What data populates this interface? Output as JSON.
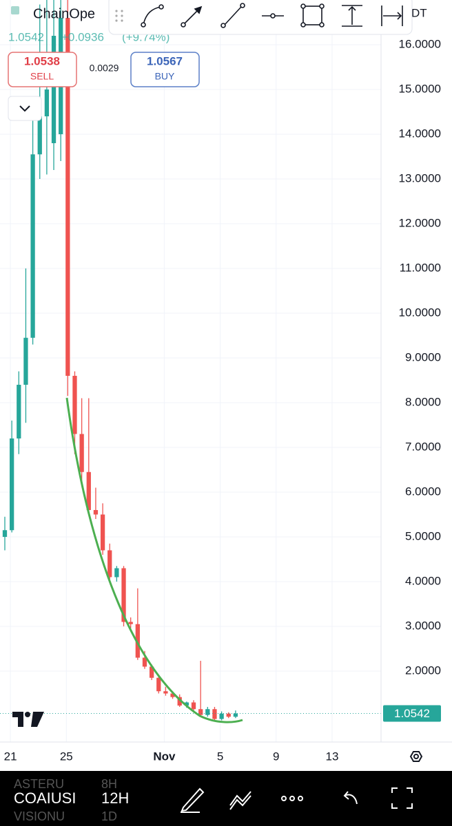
{
  "chart_data": {
    "type": "candlestick",
    "open": [
      5.0,
      5.15,
      7.2,
      8.4,
      9.45,
      13.55,
      14.4,
      13.8,
      14.0,
      16.6,
      8.6,
      7.3,
      6.45,
      5.6,
      5.5,
      4.7,
      4.1,
      4.3,
      3.1,
      3.05,
      2.3,
      2.1,
      1.85,
      1.55,
      1.5,
      1.42,
      1.23,
      1.3,
      1.15,
      1.02,
      1.15,
      0.93,
      1.05,
      0.98
    ],
    "high": [
      5.45,
      7.6,
      8.7,
      11.0,
      14.4,
      16.9,
      17.0,
      17.0,
      17.2,
      17.2,
      8.7,
      8.1,
      8.1,
      6.1,
      5.75,
      4.85,
      4.35,
      4.35,
      3.2,
      3.85,
      2.45,
      2.15,
      1.9,
      1.65,
      1.55,
      1.48,
      1.32,
      1.35,
      2.23,
      1.2,
      1.2,
      1.1,
      1.08,
      1.12
    ],
    "low": [
      4.7,
      5.1,
      6.85,
      7.55,
      9.3,
      13.0,
      13.1,
      13.2,
      13.4,
      8.15,
      6.85,
      6.2,
      5.5,
      5.4,
      4.6,
      4.05,
      4.0,
      3.0,
      2.95,
      2.25,
      2.05,
      1.8,
      1.5,
      1.45,
      1.38,
      1.2,
      1.18,
      1.12,
      1.0,
      0.98,
      0.9,
      0.9,
      0.95,
      0.95
    ],
    "close": [
      5.15,
      7.2,
      8.4,
      9.45,
      13.55,
      14.4,
      15.0,
      16.2,
      16.6,
      8.6,
      7.3,
      6.45,
      5.6,
      5.5,
      4.7,
      4.1,
      4.3,
      3.1,
      3.05,
      2.3,
      2.1,
      1.85,
      1.55,
      1.5,
      1.42,
      1.23,
      1.3,
      1.15,
      1.02,
      1.15,
      0.93,
      1.05,
      0.98,
      1.0542
    ],
    "up_color": "#26a69a",
    "down_color": "#ef5350",
    "xlim": [
      -0.69,
      53.8
    ],
    "xticks": [
      {
        "value": 0.8,
        "label": "21"
      },
      {
        "value": 8.8,
        "label": "25"
      },
      {
        "value": 22.8,
        "label": "Nov"
      },
      {
        "value": 30.8,
        "label": "5"
      },
      {
        "value": 38.8,
        "label": "9"
      },
      {
        "value": 46.8,
        "label": "13"
      }
    ],
    "ylim": [
      0.415,
      17.0
    ],
    "yticks": [
      {
        "value": 2,
        "label": "2.0000"
      },
      {
        "value": 3,
        "label": "3.0000"
      },
      {
        "value": 4,
        "label": "4.0000"
      },
      {
        "value": 5,
        "label": "5.0000"
      },
      {
        "value": 6,
        "label": "6.0000"
      },
      {
        "value": 7,
        "label": "7.0000"
      },
      {
        "value": 8,
        "label": "8.0000"
      },
      {
        "value": 9,
        "label": "9.0000"
      },
      {
        "value": 10,
        "label": "10.0000"
      },
      {
        "value": 11,
        "label": "11.0000"
      },
      {
        "value": 12,
        "label": "12.0000"
      },
      {
        "value": 13,
        "label": "13.0000"
      },
      {
        "value": 14,
        "label": "14.0000"
      },
      {
        "value": 15,
        "label": "15.0000"
      },
      {
        "value": 16,
        "label": "16.0000"
      }
    ],
    "grid": true
  },
  "ui": {
    "symbol": "ChainOpe",
    "symbol_suffix": "DT",
    "last": "1.0542",
    "change": "+0.0936",
    "change_pct": "(+9.74%)",
    "sell": {
      "price": "1.0538",
      "label": "SELL"
    },
    "spread": "0.0029",
    "buy": {
      "price": "1.0567",
      "label": "BUY"
    },
    "picker": [
      {
        "symbol": "ASTERU",
        "interval": "8H"
      },
      {
        "symbol": "COAIUSI",
        "interval": "12H"
      },
      {
        "symbol": "VISIONU",
        "interval": "1D"
      }
    ]
  }
}
